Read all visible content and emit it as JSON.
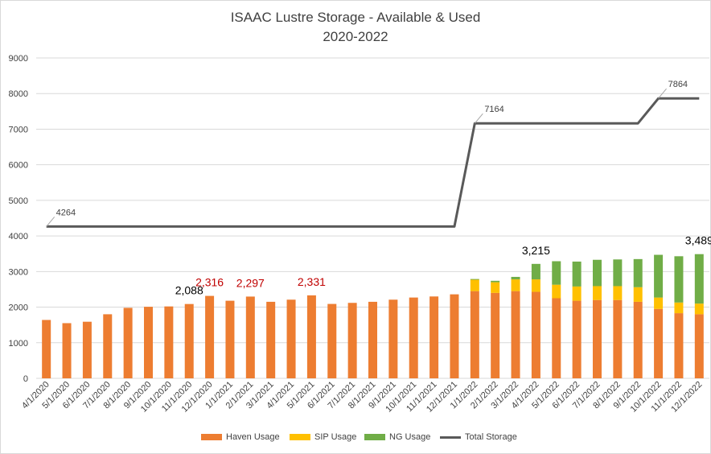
{
  "title_line1": "ISAAC Lustre Storage - Available & Used",
  "title_line2": "2020-2022",
  "colors": {
    "haven": "#ED7D31",
    "sip": "#FFC000",
    "ng": "#70AD47",
    "total": "#595959",
    "grid": "#d9d9d9",
    "label_black": "#000000",
    "label_red": "#C00000"
  },
  "legend": [
    {
      "key": "haven",
      "label": "Haven Usage",
      "kind": "bar"
    },
    {
      "key": "sip",
      "label": "SIP Usage",
      "kind": "bar"
    },
    {
      "key": "ng",
      "label": "NG Usage",
      "kind": "bar"
    },
    {
      "key": "total",
      "label": "Total Storage",
      "kind": "line"
    }
  ],
  "chart_data": {
    "type": "bar",
    "stacked": true,
    "title": "ISAAC Lustre Storage - Available & Used 2020-2022",
    "ylim": [
      0,
      9000
    ],
    "yticks": [
      0,
      1000,
      2000,
      3000,
      4000,
      5000,
      6000,
      7000,
      8000,
      9000
    ],
    "grid": true,
    "legend_position": "bottom",
    "categories": [
      "4/1/2020",
      "5/1/2020",
      "6/1/2020",
      "7/1/2020",
      "8/1/2020",
      "9/1/2020",
      "10/1/2020",
      "11/1/2020",
      "12/1/2020",
      "1/1/2021",
      "2/1/2021",
      "3/1/2021",
      "4/1/2021",
      "5/1/2021",
      "6/1/2021",
      "7/1/2021",
      "8/1/2021",
      "9/1/2021",
      "10/1/2021",
      "11/1/2021",
      "12/1/2021",
      "1/1/2022",
      "2/1/2022",
      "3/1/2022",
      "4/1/2022",
      "5/1/2022",
      "6/1/2022",
      "7/1/2022",
      "8/1/2022",
      "9/1/2022",
      "10/1/2022",
      "11/1/2022",
      "12/1/2022"
    ],
    "series": [
      {
        "name": "Haven Usage",
        "kind": "bar",
        "values": [
          1640,
          1550,
          1590,
          1800,
          1980,
          2010,
          2020,
          2088,
          2316,
          2180,
          2297,
          2150,
          2210,
          2331,
          2090,
          2120,
          2150,
          2210,
          2270,
          2300,
          2360,
          2450,
          2400,
          2450,
          2430,
          2250,
          2180,
          2200,
          2200,
          2150,
          1950,
          1830,
          1800
        ]
      },
      {
        "name": "SIP Usage",
        "kind": "bar",
        "values": [
          0,
          0,
          0,
          0,
          0,
          0,
          0,
          0,
          0,
          0,
          0,
          0,
          0,
          0,
          0,
          0,
          0,
          0,
          0,
          0,
          0,
          320,
          300,
          330,
          350,
          380,
          400,
          390,
          390,
          410,
          320,
          300,
          300
        ]
      },
      {
        "name": "NG Usage",
        "kind": "bar",
        "values": [
          0,
          0,
          0,
          0,
          0,
          0,
          0,
          0,
          0,
          0,
          0,
          0,
          0,
          0,
          0,
          0,
          0,
          0,
          0,
          0,
          0,
          20,
          40,
          70,
          435,
          660,
          700,
          740,
          750,
          790,
          1200,
          1300,
          1389
        ]
      },
      {
        "name": "Total Storage",
        "kind": "line",
        "values": [
          4264,
          4264,
          4264,
          4264,
          4264,
          4264,
          4264,
          4264,
          4264,
          4264,
          4264,
          4264,
          4264,
          4264,
          4264,
          4264,
          4264,
          4264,
          4264,
          4264,
          4264,
          7164,
          7164,
          7164,
          7164,
          7164,
          7164,
          7164,
          7164,
          7164,
          7864,
          7864,
          7864
        ]
      }
    ],
    "annotations": [
      {
        "index": 7,
        "text": "2,088",
        "color": "black"
      },
      {
        "index": 8,
        "text": "2,316",
        "color": "red"
      },
      {
        "index": 10,
        "text": "2,297",
        "color": "red"
      },
      {
        "index": 13,
        "text": "2,331",
        "color": "red"
      },
      {
        "index": 24,
        "text": "3,215",
        "color": "black"
      },
      {
        "index": 32,
        "text": "3,489",
        "color": "black"
      }
    ],
    "line_labels": [
      {
        "index": 0,
        "text": "4264"
      },
      {
        "index": 21,
        "text": "7164"
      },
      {
        "index": 30,
        "text": "7864"
      }
    ]
  }
}
